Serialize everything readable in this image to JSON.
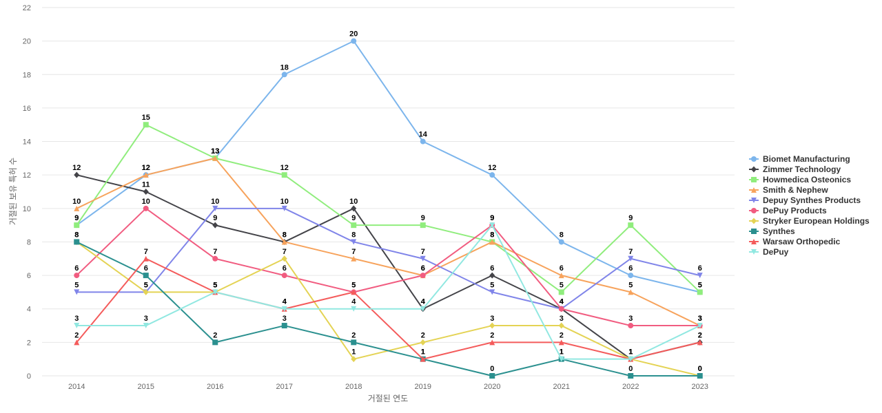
{
  "chart_data": {
    "type": "line",
    "xlabel": "거절된 연도",
    "ylabel": "거절된 보유 특허 수",
    "ylim": [
      0,
      22
    ],
    "yticks": [
      0,
      2,
      4,
      6,
      8,
      10,
      12,
      14,
      16,
      18,
      20,
      22
    ],
    "grid": true,
    "legend_position": "right",
    "categories": [
      "2014",
      "2015",
      "2016",
      "2017",
      "2018",
      "2019",
      "2020",
      "2021",
      "2022",
      "2023"
    ],
    "series": [
      {
        "name": "Biomet Manufacturing",
        "color": "#7cb5ec",
        "marker": "circle",
        "values": [
          9,
          12,
          13,
          18,
          20,
          14,
          12,
          8,
          6,
          5
        ]
      },
      {
        "name": "Zimmer Technology",
        "color": "#434348",
        "marker": "diamond",
        "values": [
          12,
          11,
          9,
          8,
          10,
          4,
          6,
          4,
          1,
          2
        ]
      },
      {
        "name": "Howmedica Osteonics",
        "color": "#90ed7d",
        "marker": "square",
        "values": [
          9,
          15,
          13,
          12,
          9,
          9,
          8,
          5,
          9,
          5
        ]
      },
      {
        "name": "Smith & Nephew",
        "color": "#f7a35c",
        "marker": "triangle",
        "values": [
          10,
          12,
          13,
          8,
          7,
          6,
          8,
          6,
          5,
          3
        ]
      },
      {
        "name": "Depuy Synthes Products",
        "color": "#8085e9",
        "marker": "triangle-down",
        "values": [
          5,
          5,
          10,
          10,
          8,
          7,
          5,
          4,
          7,
          6
        ]
      },
      {
        "name": "DePuy Products",
        "color": "#f15c80",
        "marker": "circle",
        "values": [
          6,
          10,
          7,
          6,
          5,
          6,
          9,
          4,
          3,
          3
        ]
      },
      {
        "name": "Stryker European Holdings",
        "color": "#e4d354",
        "marker": "diamond",
        "values": [
          8,
          5,
          5,
          7,
          1,
          2,
          3,
          3,
          1,
          0
        ]
      },
      {
        "name": "Synthes",
        "color": "#2b908f",
        "marker": "square",
        "values": [
          8,
          6,
          2,
          3,
          2,
          1,
          0,
          1,
          0,
          0
        ]
      },
      {
        "name": "Warsaw Orthopedic",
        "color": "#f45b5b",
        "marker": "triangle",
        "values": [
          2,
          7,
          5,
          4,
          5,
          1,
          2,
          2,
          1,
          2
        ]
      },
      {
        "name": "DePuy",
        "color": "#91e8e1",
        "marker": "triangle-down",
        "values": [
          3,
          3,
          5,
          4,
          4,
          4,
          9,
          1,
          1,
          3
        ]
      }
    ]
  }
}
